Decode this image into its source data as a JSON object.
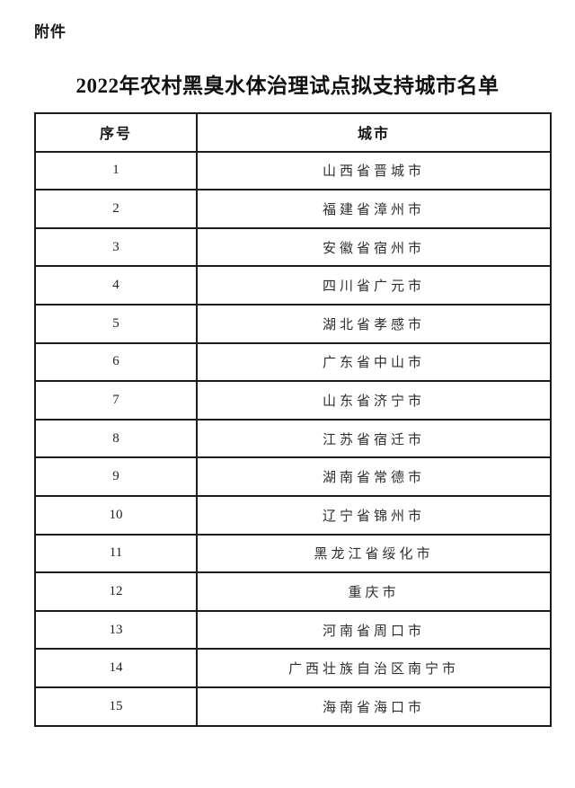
{
  "page": {
    "attachment_label": "附件",
    "title": "2022年农村黑臭水体治理试点拟支持城市名单"
  },
  "table": {
    "columns": [
      "序号",
      "城市"
    ],
    "rows": [
      {
        "no": "1",
        "city": "山西省晋城市"
      },
      {
        "no": "2",
        "city": "福建省漳州市"
      },
      {
        "no": "3",
        "city": "安徽省宿州市"
      },
      {
        "no": "4",
        "city": "四川省广元市"
      },
      {
        "no": "5",
        "city": "湖北省孝感市"
      },
      {
        "no": "6",
        "city": "广东省中山市"
      },
      {
        "no": "7",
        "city": "山东省济宁市"
      },
      {
        "no": "8",
        "city": "江苏省宿迁市"
      },
      {
        "no": "9",
        "city": "湖南省常德市"
      },
      {
        "no": "10",
        "city": "辽宁省锦州市"
      },
      {
        "no": "11",
        "city": "黑龙江省绥化市"
      },
      {
        "no": "12",
        "city": "重庆市"
      },
      {
        "no": "13",
        "city": "河南省周口市"
      },
      {
        "no": "14",
        "city": "广西壮族自治区南宁市"
      },
      {
        "no": "15",
        "city": "海南省海口市"
      }
    ]
  },
  "colors": {
    "background": "#ffffff",
    "text": "#1f1f1f",
    "border": "#1c1c1c"
  }
}
